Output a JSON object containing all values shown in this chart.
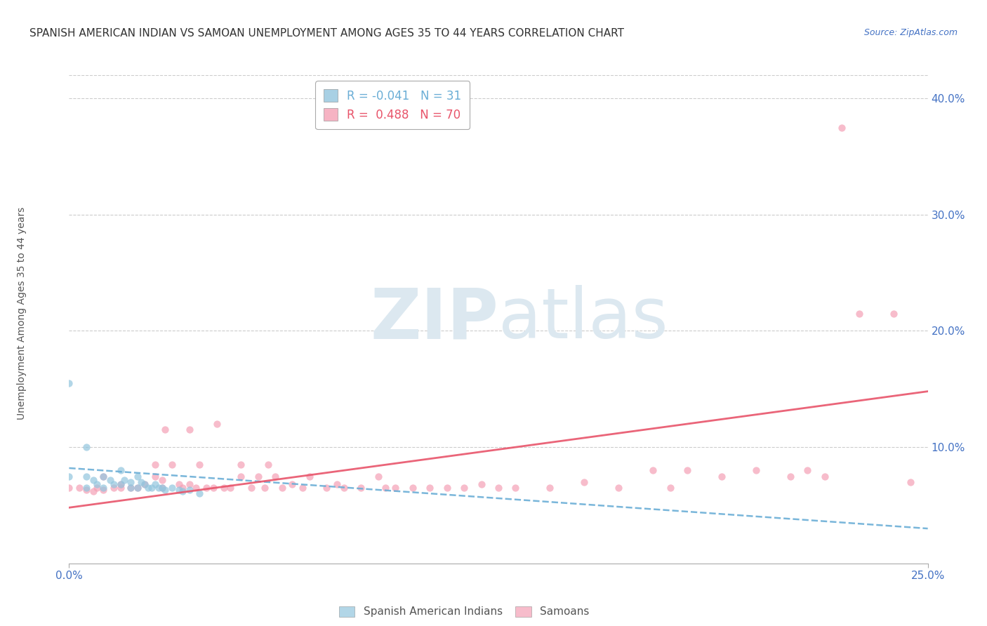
{
  "title": "SPANISH AMERICAN INDIAN VS SAMOAN UNEMPLOYMENT AMONG AGES 35 TO 44 YEARS CORRELATION CHART",
  "source": "Source: ZipAtlas.com",
  "ylabel": "Unemployment Among Ages 35 to 44 years",
  "xlim": [
    0.0,
    0.25
  ],
  "ylim": [
    0.0,
    0.42
  ],
  "yticks": [
    0.1,
    0.2,
    0.3,
    0.4
  ],
  "ytick_labels": [
    "10.0%",
    "20.0%",
    "30.0%",
    "40.0%"
  ],
  "xtick_left_label": "0.0%",
  "xtick_right_label": "25.0%",
  "blue_R": -0.041,
  "blue_N": 31,
  "pink_R": 0.488,
  "pink_N": 70,
  "blue_scatter_x": [
    0.0,
    0.0,
    0.005,
    0.005,
    0.005,
    0.007,
    0.008,
    0.01,
    0.01,
    0.012,
    0.013,
    0.015,
    0.015,
    0.016,
    0.018,
    0.018,
    0.02,
    0.02,
    0.021,
    0.022,
    0.023,
    0.024,
    0.025,
    0.026,
    0.027,
    0.028,
    0.03,
    0.032,
    0.033,
    0.035,
    0.038
  ],
  "blue_scatter_y": [
    0.155,
    0.075,
    0.1,
    0.075,
    0.065,
    0.072,
    0.068,
    0.075,
    0.065,
    0.072,
    0.068,
    0.08,
    0.068,
    0.072,
    0.07,
    0.065,
    0.075,
    0.065,
    0.07,
    0.068,
    0.065,
    0.065,
    0.068,
    0.065,
    0.065,
    0.063,
    0.065,
    0.063,
    0.062,
    0.063,
    0.06
  ],
  "pink_scatter_x": [
    0.0,
    0.003,
    0.005,
    0.007,
    0.008,
    0.01,
    0.01,
    0.013,
    0.015,
    0.015,
    0.018,
    0.02,
    0.022,
    0.025,
    0.025,
    0.027,
    0.027,
    0.028,
    0.03,
    0.032,
    0.033,
    0.035,
    0.035,
    0.037,
    0.038,
    0.04,
    0.042,
    0.043,
    0.045,
    0.047,
    0.05,
    0.05,
    0.053,
    0.055,
    0.057,
    0.058,
    0.06,
    0.062,
    0.065,
    0.068,
    0.07,
    0.075,
    0.078,
    0.08,
    0.085,
    0.09,
    0.092,
    0.095,
    0.1,
    0.105,
    0.11,
    0.115,
    0.12,
    0.125,
    0.13,
    0.14,
    0.15,
    0.16,
    0.17,
    0.175,
    0.18,
    0.19,
    0.2,
    0.21,
    0.215,
    0.22,
    0.225,
    0.23,
    0.24,
    0.245
  ],
  "pink_scatter_y": [
    0.065,
    0.065,
    0.063,
    0.062,
    0.065,
    0.063,
    0.075,
    0.065,
    0.065,
    0.068,
    0.065,
    0.065,
    0.068,
    0.075,
    0.085,
    0.072,
    0.065,
    0.115,
    0.085,
    0.068,
    0.065,
    0.068,
    0.115,
    0.065,
    0.085,
    0.065,
    0.065,
    0.12,
    0.065,
    0.065,
    0.085,
    0.075,
    0.065,
    0.075,
    0.065,
    0.085,
    0.075,
    0.065,
    0.068,
    0.065,
    0.075,
    0.065,
    0.068,
    0.065,
    0.065,
    0.075,
    0.065,
    0.065,
    0.065,
    0.065,
    0.065,
    0.065,
    0.068,
    0.065,
    0.065,
    0.065,
    0.07,
    0.065,
    0.08,
    0.065,
    0.08,
    0.075,
    0.08,
    0.075,
    0.08,
    0.075,
    0.375,
    0.215,
    0.215,
    0.07
  ],
  "blue_line_x": [
    0.0,
    0.25
  ],
  "blue_line_y": [
    0.082,
    0.03
  ],
  "pink_line_x": [
    0.0,
    0.25
  ],
  "pink_line_y": [
    0.048,
    0.148
  ],
  "blue_color": "#92c5de",
  "pink_color": "#f4a0b5",
  "blue_line_color": "#6baed6",
  "pink_line_color": "#e8546a",
  "watermark_color": "#dce8f0",
  "title_fontsize": 11,
  "axis_label_fontsize": 10,
  "tick_fontsize": 11,
  "legend_fontsize": 12,
  "background_color": "#ffffff",
  "grid_color": "#cccccc",
  "tick_color": "#4472c4"
}
